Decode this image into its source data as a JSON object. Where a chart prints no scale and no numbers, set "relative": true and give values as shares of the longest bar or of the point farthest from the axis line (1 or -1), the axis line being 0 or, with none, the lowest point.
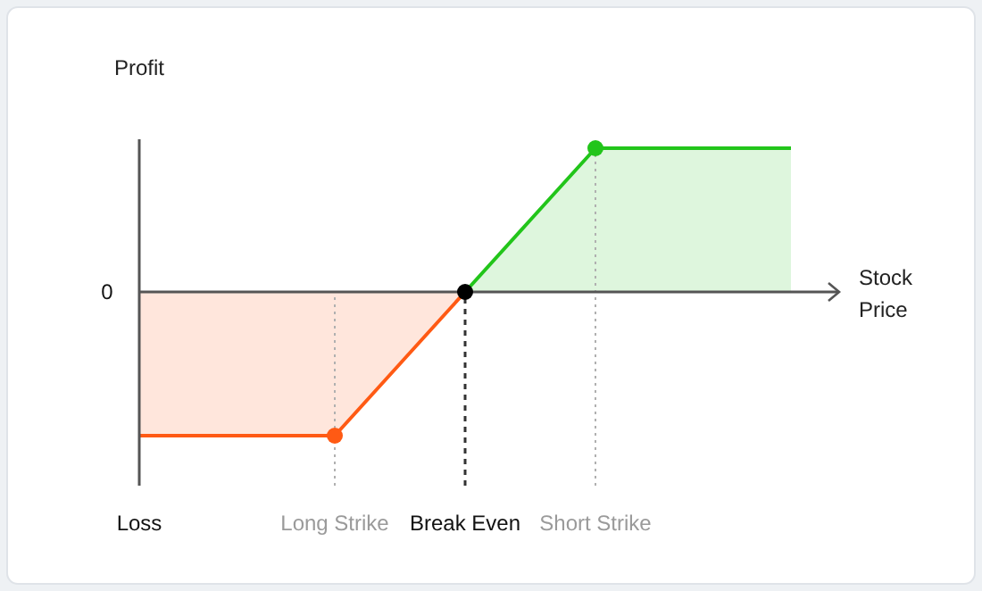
{
  "chart_data": {
    "type": "area",
    "relative": true,
    "ylabel": "Profit",
    "xlabel": "Stock Price",
    "categories": [
      null,
      null,
      null,
      "Long Strike",
      null,
      "Break Even",
      null,
      "Short Strike",
      null,
      null,
      null
    ],
    "series": [
      {
        "color": "#ff5a14",
        "values": [
          -1,
          -1,
          -1,
          -1,
          -0.5,
          0,
          null,
          null,
          null,
          null,
          null
        ]
      },
      {
        "color": "#22c51a",
        "values": [
          null,
          null,
          null,
          null,
          null,
          0,
          0.5,
          1,
          1,
          1,
          1
        ]
      },
      {
        "type": "scatter",
        "x": [
          "Long Strike",
          "Break Even",
          "Short Strike"
        ],
        "values": [
          -1,
          0,
          1
        ],
        "colors": [
          "#ff5a14",
          "#000000",
          "#22c51a"
        ]
      }
    ],
    "ref_lines": [
      {
        "axis": "x",
        "value": "Long Strike",
        "color": "#b0b0b0",
        "line_style": "dotted"
      },
      {
        "axis": "x",
        "value": "Break Even",
        "color": "#333333",
        "line_style": "dashed"
      },
      {
        "axis": "x",
        "value": "Short Strike",
        "color": "#b0b0b0",
        "line_style": "dotted"
      }
    ],
    "annotations": [
      "0",
      "Loss"
    ]
  }
}
